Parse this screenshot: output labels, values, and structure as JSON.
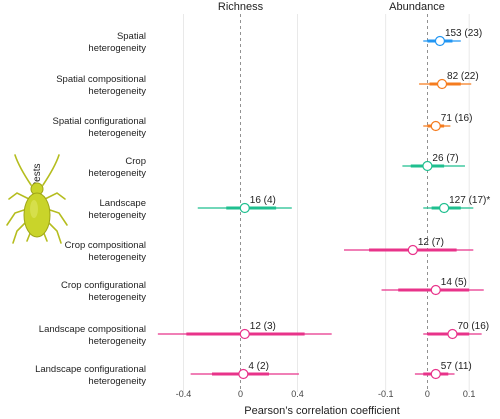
{
  "chart_data": {
    "type": "forest",
    "panels": [
      {
        "title": "Richness",
        "xlim": [
          -0.6,
          0.6
        ],
        "ticks": [
          -0.4,
          0,
          0.4
        ],
        "tick_labels": [
          "-0.4",
          "0",
          "0.4"
        ]
      },
      {
        "title": "Abundance",
        "xlim": [
          -0.2,
          0.15
        ],
        "ticks": [
          -0.1,
          0,
          0.1
        ],
        "tick_labels": [
          "-0.1",
          "0",
          "0.1"
        ]
      }
    ],
    "xlabel": "Pearson’s correlation coefficient",
    "group_label": "Pests",
    "rows": [
      {
        "label": [
          "Spatial",
          "heterogeneity"
        ],
        "color": "#2196f3",
        "abundance": {
          "est": 0.03,
          "ci_inner": [
            0.0,
            0.06
          ],
          "ci_outer": [
            -0.01,
            0.08
          ],
          "label": "153 (23)"
        }
      },
      {
        "label": [
          "Spatial compositional",
          "heterogeneity"
        ],
        "color": "#f57c1f",
        "abundance": {
          "est": 0.035,
          "ci_inner": [
            0.005,
            0.08
          ],
          "ci_outer": [
            -0.02,
            0.105
          ],
          "label": "82 (22)"
        }
      },
      {
        "label": [
          "Spatial configurational",
          "heterogeneity"
        ],
        "color": "#f57c1f",
        "abundance": {
          "est": 0.02,
          "ci_inner": [
            0.0,
            0.04
          ],
          "ci_outer": [
            -0.01,
            0.055
          ],
          "label": "71 (16)"
        }
      },
      {
        "label": [
          "Crop",
          "heterogeneity"
        ],
        "color": "#1fbf8f",
        "abundance": {
          "est": 0.0,
          "ci_inner": [
            -0.04,
            0.04
          ],
          "ci_outer": [
            -0.06,
            0.09
          ],
          "label": "26 (7)"
        }
      },
      {
        "label": [
          "Landscape",
          "heterogeneity"
        ],
        "color": "#1fbf8f",
        "richness": {
          "est": 0.03,
          "ci_inner": [
            -0.1,
            0.25
          ],
          "ci_outer": [
            -0.3,
            0.36
          ],
          "label": "16 (4)"
        },
        "abundance": {
          "est": 0.04,
          "ci_inner": [
            0.01,
            0.08
          ],
          "ci_outer": [
            -0.01,
            0.11
          ],
          "label": "127 (17)*"
        }
      },
      {
        "label": [
          "Crop compositional",
          "heterogeneity"
        ],
        "color": "#e8338a",
        "abundance": {
          "est": -0.035,
          "ci_inner": [
            -0.14,
            0.07
          ],
          "ci_outer": [
            -0.2,
            0.11
          ],
          "label": "12 (7)"
        }
      },
      {
        "label": [
          "Crop configurational",
          "heterogeneity"
        ],
        "color": "#e8338a",
        "abundance": {
          "est": 0.02,
          "ci_inner": [
            -0.07,
            0.1
          ],
          "ci_outer": [
            -0.11,
            0.135
          ],
          "label": "14 (5)"
        }
      },
      {
        "label": [
          "Landscape compositional",
          "heterogeneity"
        ],
        "color": "#e8338a",
        "richness": {
          "est": 0.03,
          "ci_inner": [
            -0.38,
            0.45
          ],
          "ci_outer": [
            -0.58,
            0.64
          ],
          "label": "12 (3)"
        },
        "abundance": {
          "est": 0.06,
          "ci_inner": [
            0.0,
            0.1
          ],
          "ci_outer": [
            -0.01,
            0.13
          ],
          "label": "70 (16)"
        }
      },
      {
        "label": [
          "Landscape configurational",
          "heterogeneity"
        ],
        "color": "#e8338a",
        "richness": {
          "est": 0.02,
          "ci_inner": [
            -0.2,
            0.2
          ],
          "ci_outer": [
            -0.35,
            0.41
          ],
          "label": "4 (2)"
        },
        "abundance": {
          "est": 0.02,
          "ci_inner": [
            -0.01,
            0.05
          ],
          "ci_outer": [
            -0.03,
            0.065
          ],
          "label": "57 (11)"
        }
      }
    ]
  }
}
